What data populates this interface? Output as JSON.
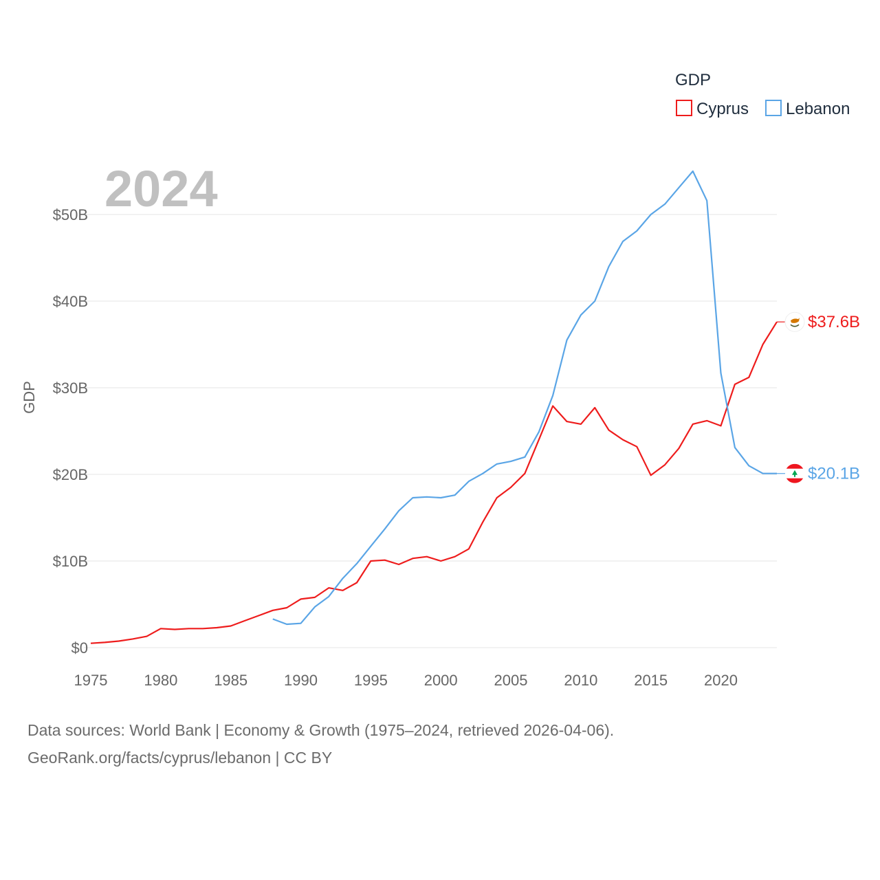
{
  "chart_data": {
    "type": "line",
    "year_label": "2024",
    "ylabel": "GDP",
    "xlim": [
      1975,
      2024
    ],
    "ylim": [
      0,
      55
    ],
    "x_ticks": [
      1975,
      1980,
      1985,
      1990,
      1995,
      2000,
      2005,
      2010,
      2015,
      2020
    ],
    "y_ticks": [
      {
        "value": 0,
        "label": "$0"
      },
      {
        "value": 10,
        "label": "$10B"
      },
      {
        "value": 20,
        "label": "$20B"
      },
      {
        "value": 30,
        "label": "$30B"
      },
      {
        "value": 40,
        "label": "$40B"
      },
      {
        "value": 50,
        "label": "$50B"
      }
    ],
    "units": "USD billions",
    "legend": {
      "title": "GDP",
      "position": "top-right"
    },
    "series": [
      {
        "name": "Cyprus",
        "color": "#ee1c1c",
        "end_label": "$37.6B",
        "flag_icon": "cyprus-flag-icon",
        "x": [
          1975,
          1976,
          1977,
          1978,
          1979,
          1980,
          1981,
          1982,
          1983,
          1984,
          1985,
          1986,
          1987,
          1988,
          1989,
          1990,
          1991,
          1992,
          1993,
          1994,
          1995,
          1996,
          1997,
          1998,
          1999,
          2000,
          2001,
          2002,
          2003,
          2004,
          2005,
          2006,
          2007,
          2008,
          2009,
          2010,
          2011,
          2012,
          2013,
          2014,
          2015,
          2016,
          2017,
          2018,
          2019,
          2020,
          2021,
          2022,
          2023,
          2024
        ],
        "values": [
          0.5,
          0.6,
          0.75,
          1.0,
          1.3,
          2.2,
          2.1,
          2.2,
          2.2,
          2.3,
          2.5,
          3.1,
          3.7,
          4.3,
          4.6,
          5.6,
          5.8,
          6.9,
          6.6,
          7.5,
          10.0,
          10.1,
          9.6,
          10.3,
          10.5,
          10.0,
          10.5,
          11.4,
          14.5,
          17.3,
          18.5,
          20.1,
          24.0,
          27.9,
          26.1,
          25.8,
          27.7,
          25.1,
          24.0,
          23.2,
          19.9,
          21.1,
          23.0,
          25.8,
          26.2,
          25.6,
          30.4,
          31.2,
          35.0,
          37.6
        ]
      },
      {
        "name": "Lebanon",
        "color": "#5aa5e6",
        "end_label": "$20.1B",
        "flag_icon": "lebanon-flag-icon",
        "x": [
          1988,
          1989,
          1990,
          1991,
          1992,
          1993,
          1994,
          1995,
          1996,
          1997,
          1998,
          1999,
          2000,
          2001,
          2002,
          2003,
          2004,
          2005,
          2006,
          2007,
          2008,
          2009,
          2010,
          2011,
          2012,
          2013,
          2014,
          2015,
          2016,
          2017,
          2018,
          2019,
          2020,
          2021,
          2022,
          2023,
          2024
        ],
        "values": [
          3.3,
          2.7,
          2.8,
          4.7,
          5.9,
          8.0,
          9.7,
          11.7,
          13.7,
          15.8,
          17.3,
          17.4,
          17.3,
          17.6,
          19.2,
          20.1,
          21.2,
          21.5,
          22.0,
          24.9,
          29.1,
          35.5,
          38.4,
          40.0,
          44.0,
          46.9,
          48.1,
          50.0,
          51.2,
          53.1,
          55.0,
          51.6,
          31.7,
          23.1,
          21.0,
          20.1,
          20.1
        ]
      }
    ]
  },
  "footer": {
    "line1": "Data sources: World Bank | Economy & Growth (1975–2024, retrieved 2026-04-06).",
    "line2": "GeoRank.org/facts/cyprus/lebanon | CC BY"
  }
}
